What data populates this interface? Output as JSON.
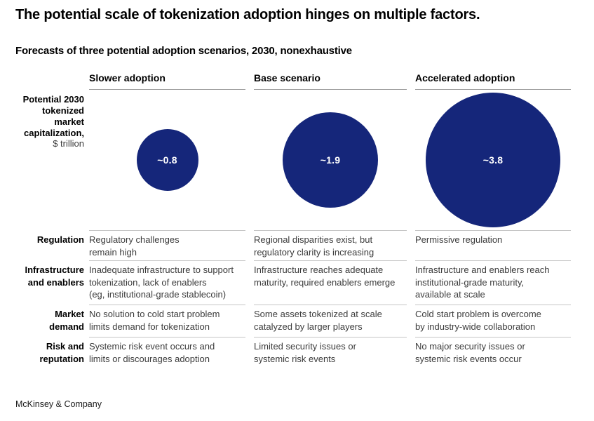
{
  "title": "The potential scale of tokenization adoption hinges on multiple factors.",
  "subtitle": "Forecasts of three potential adoption scenarios, 2030, nonexhaustive",
  "axis_label": {
    "bold": "Potential 2030\ntokenized\nmarket\ncapitalization,",
    "unit": "$ trillion"
  },
  "footer": "McKinsey & Company",
  "colors": {
    "bubble": "#15267a",
    "bubble_label": "#ffffff",
    "header_rule": "#9e9e9e",
    "row_rule": "#c6c6c6",
    "body_text": "#3b3b3b"
  },
  "chart_data": {
    "type": "bubble",
    "title": "The potential scale of tokenization adoption hinges on multiple factors.",
    "subtitle": "Forecasts of three potential adoption scenarios, 2030, nonexhaustive",
    "metric": "Potential 2030 tokenized market capitalization",
    "unit": "$ trillion",
    "scenarios": [
      "Slower adoption",
      "Base scenario",
      "Accelerated adoption"
    ],
    "values": [
      0.8,
      1.9,
      3.8
    ],
    "value_labels": [
      "~0.8",
      "~1.9",
      "~3.8"
    ],
    "bubble_area_proportional_to_value": true,
    "factors": [
      {
        "label": "Regulation",
        "cells": [
          "Regulatory challenges\nremain high",
          "Regional disparities exist, but\nregulatory clarity is increasing",
          "Permissive regulation"
        ]
      },
      {
        "label": "Infrastructure\nand enablers",
        "cells": [
          "Inadequate infrastructure to support\ntokenization, lack of enablers\n(eg, institutional-grade stablecoin)",
          "Infrastructure reaches adequate\nmaturity, required enablers emerge",
          "Infrastructure and enablers reach\ninstitutional-grade maturity,\navailable at scale"
        ]
      },
      {
        "label": "Market\ndemand",
        "cells": [
          "No solution to cold start problem\nlimits demand for tokenization",
          "Some assets tokenized at scale\ncatalyzed by larger players",
          "Cold start problem is overcome\nby industry-wide collaboration"
        ]
      },
      {
        "label": "Risk and\nreputation",
        "cells": [
          "Systemic risk event occurs and\nlimits or discourages adoption",
          "Limited security issues or\nsystemic risk events",
          "No major security issues or\nsystemic risk events occur"
        ]
      }
    ]
  }
}
